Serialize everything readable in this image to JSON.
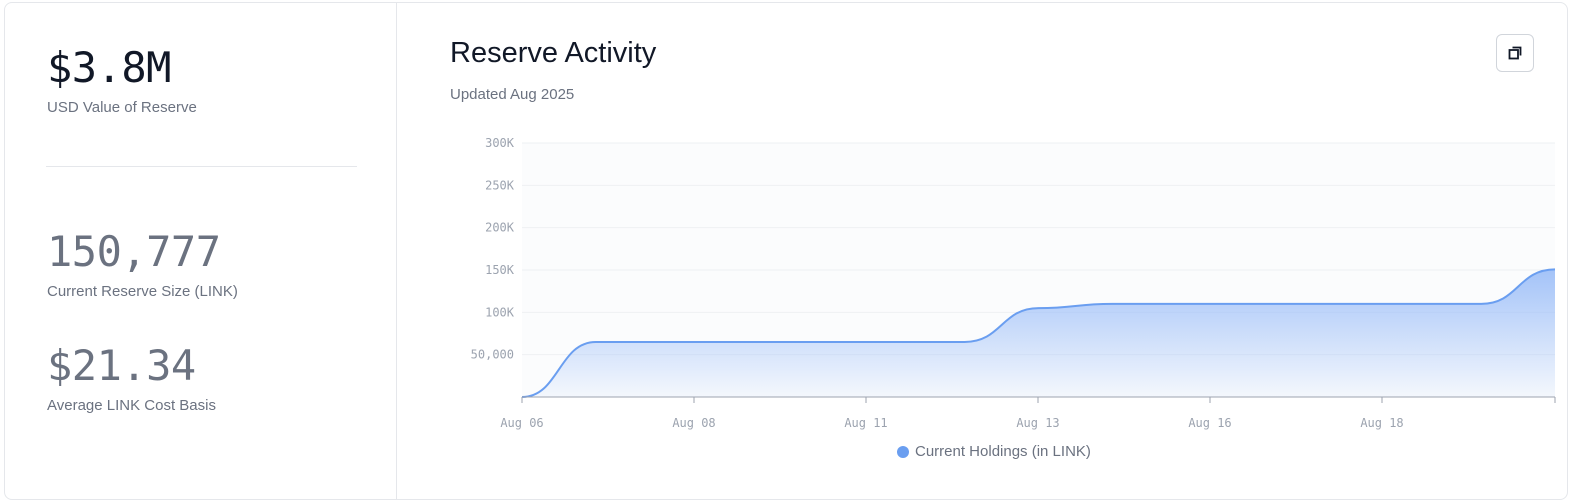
{
  "stats": {
    "usd_value": "$3.8M",
    "usd_value_label": "USD Value of Reserve",
    "reserve_size": "150,777",
    "reserve_size_label": "Current Reserve Size (LINK)",
    "cost_basis": "$21.34",
    "cost_basis_label": "Average LINK Cost Basis"
  },
  "chart_header": {
    "title": "Reserve Activity",
    "subtitle": "Updated Aug 2025",
    "expand_icon": "expand-icon"
  },
  "colors": {
    "series": "#6a9ef0",
    "fill_top": "#9fc0f8",
    "grid": "#eef0f3"
  },
  "chart_data": {
    "type": "area",
    "title": "Reserve Activity",
    "subtitle": "Updated Aug 2025",
    "x_tick_labels": [
      "Aug 06",
      "Aug 08",
      "Aug 11",
      "Aug 13",
      "Aug 16",
      "Aug 18"
    ],
    "y_tick_labels": [
      "50,000",
      "100K",
      "150K",
      "200K",
      "250K",
      "300K"
    ],
    "y_ticks": [
      50000,
      100000,
      150000,
      200000,
      250000,
      300000
    ],
    "ylim": [
      0,
      300000
    ],
    "grid": true,
    "legend": "bottom-center",
    "series": [
      {
        "name": "Current Holdings (in LINK)",
        "points": [
          {
            "x": "Aug 06",
            "y": 0
          },
          {
            "x": "Aug 07",
            "y": 65000
          },
          {
            "x": "Aug 08",
            "y": 65000
          },
          {
            "x": "Aug 11",
            "y": 65000
          },
          {
            "x": "Aug 12",
            "y": 65000
          },
          {
            "x": "Aug 13",
            "y": 105000
          },
          {
            "x": "Aug 14",
            "y": 110000
          },
          {
            "x": "Aug 16",
            "y": 110000
          },
          {
            "x": "Aug 18",
            "y": 110000
          },
          {
            "x": "Aug 19",
            "y": 110000
          },
          {
            "x": "Aug 20",
            "y": 150777
          }
        ]
      }
    ]
  }
}
